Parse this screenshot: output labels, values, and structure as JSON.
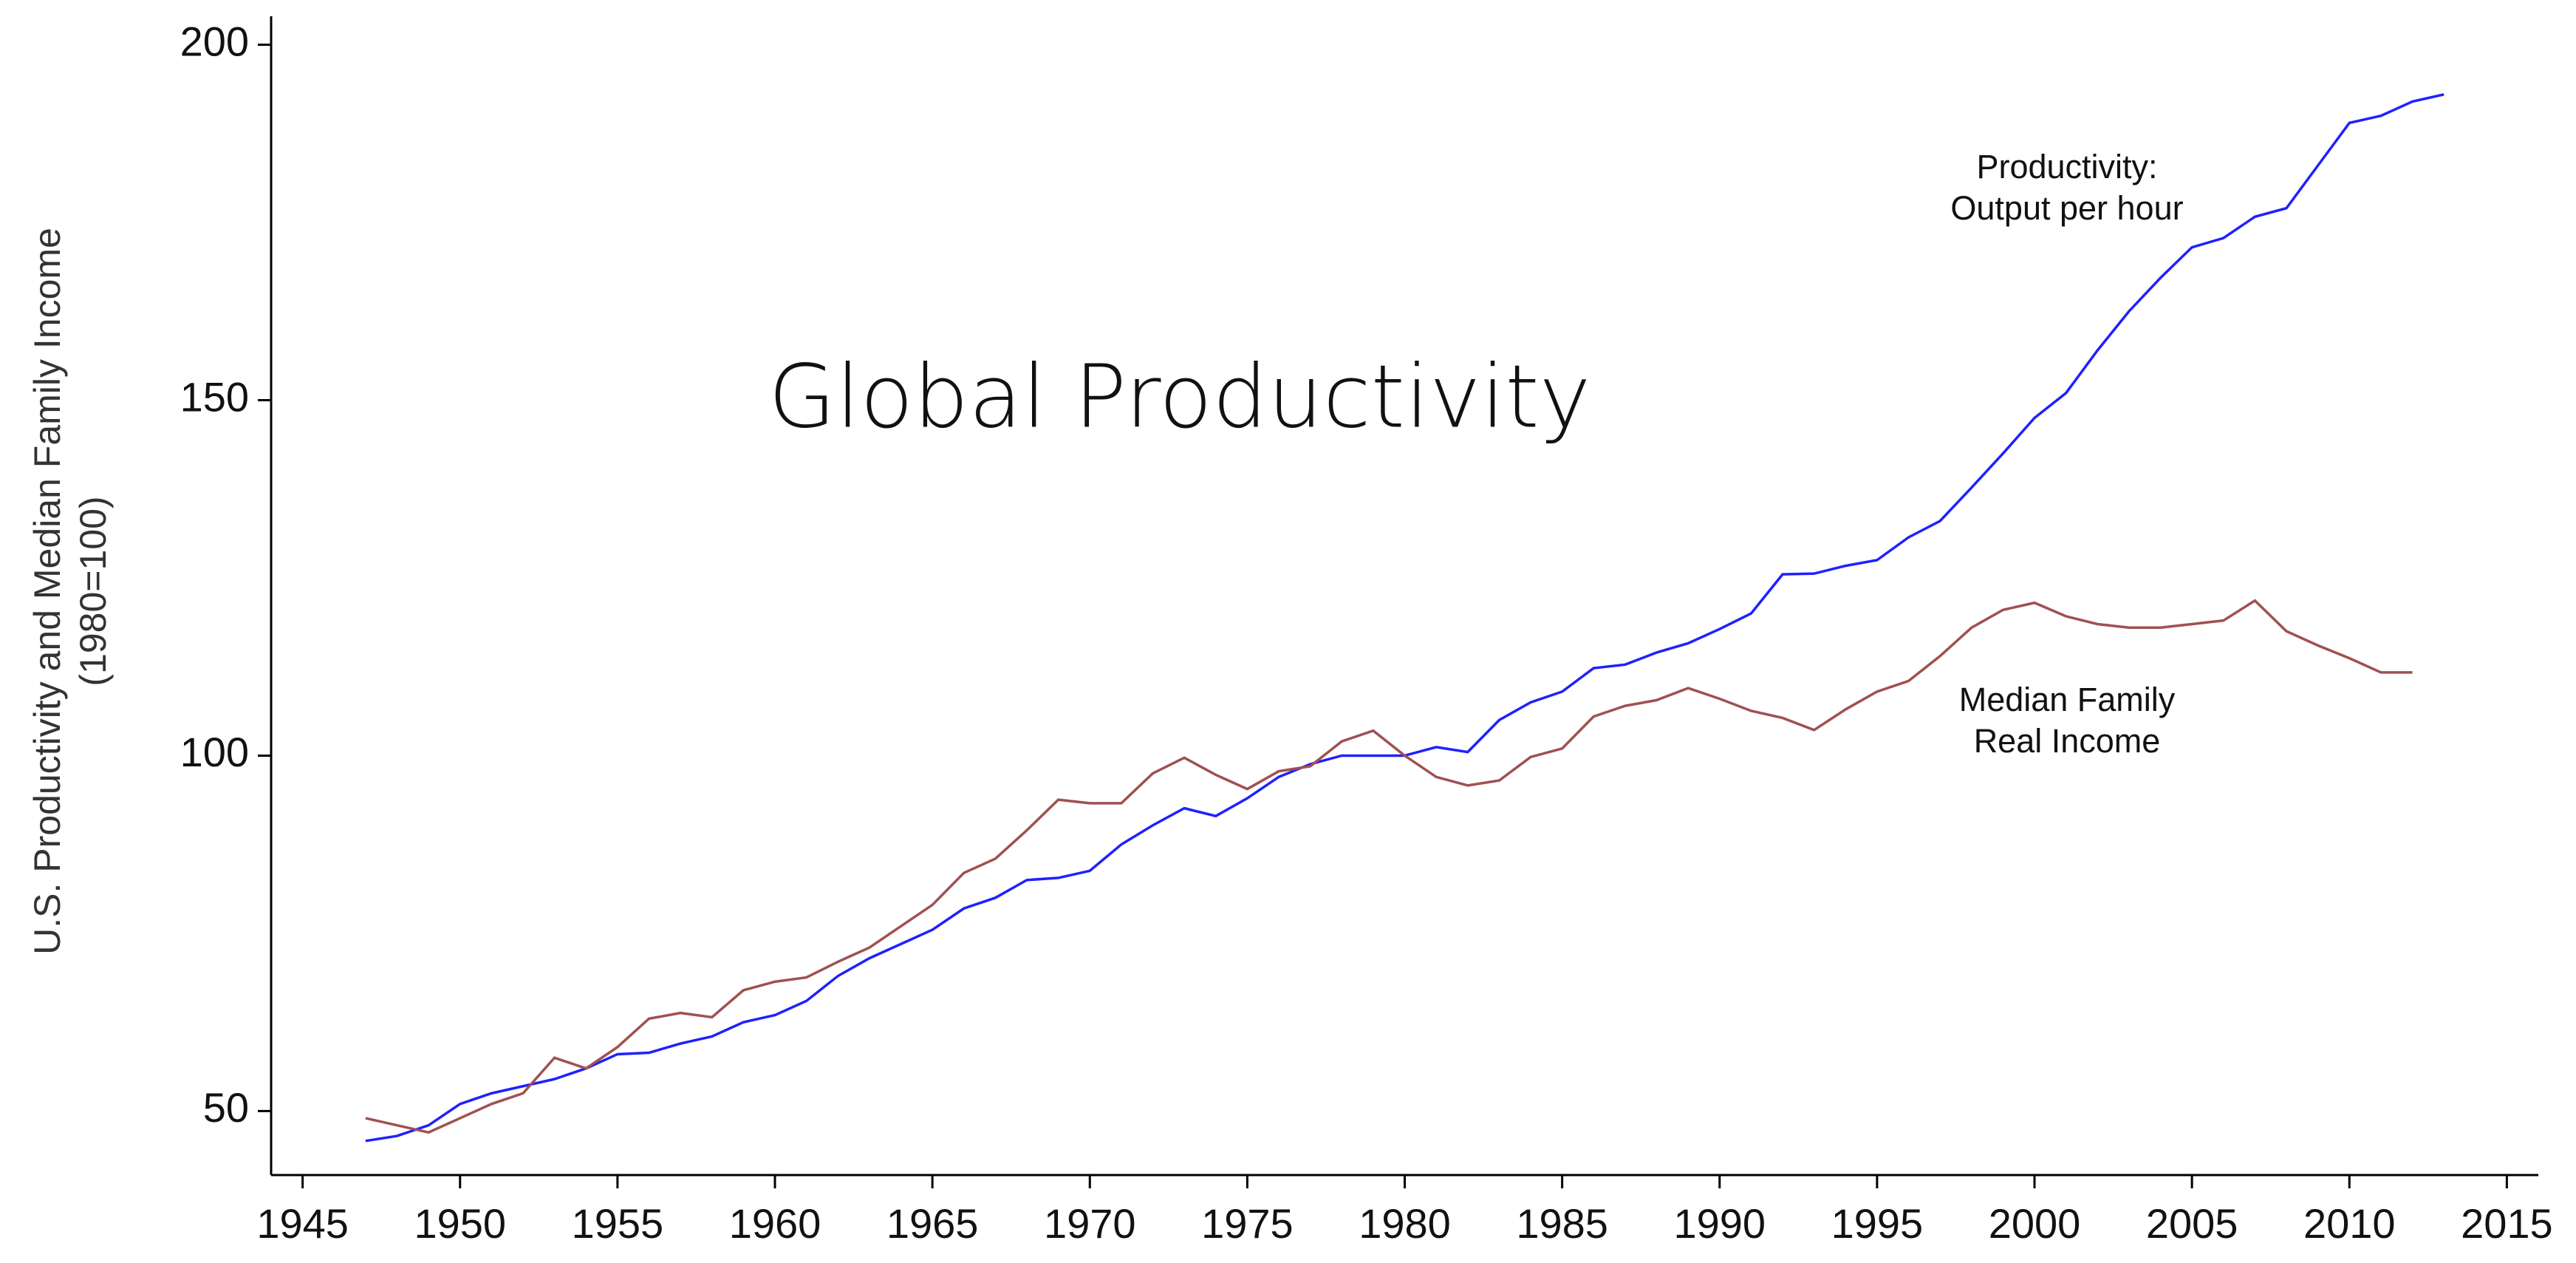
{
  "chart_data": {
    "type": "line",
    "title": "Global Productivity",
    "y_label": [
      "U.S. Productivity and Median Family Income",
      "(1980=100)"
    ],
    "x": [
      1947,
      1948,
      1949,
      1950,
      1951,
      1952,
      1953,
      1954,
      1955,
      1956,
      1957,
      1958,
      1959,
      1960,
      1961,
      1962,
      1963,
      1964,
      1965,
      1966,
      1967,
      1968,
      1969,
      1970,
      1971,
      1972,
      1973,
      1974,
      1975,
      1976,
      1977,
      1978,
      1979,
      1980,
      1981,
      1982,
      1983,
      1984,
      1985,
      1986,
      1987,
      1988,
      1989,
      1990,
      1991,
      1992,
      1993,
      1994,
      1995,
      1996,
      1997,
      1998,
      1999,
      2000,
      2001,
      2002,
      2003,
      2004,
      2005,
      2006,
      2007,
      2008,
      2009,
      2010,
      2011,
      2012,
      2013
    ],
    "series": [
      {
        "color": "#2020ff",
        "values": [
          45.8,
          46.5,
          48,
          51,
          52.5,
          53.5,
          54.5,
          56,
          58,
          58.2,
          59.5,
          60.5,
          62.5,
          63.5,
          65.5,
          69,
          71.5,
          73.5,
          75.5,
          78.5,
          80,
          82.5,
          82.8,
          83.8,
          87.5,
          90.2,
          92.6,
          91.5,
          94,
          97,
          98.8,
          100,
          100,
          100,
          101.2,
          100.5,
          105,
          107.5,
          109,
          112.3,
          112.8,
          114.5,
          115.8,
          117.8,
          120,
          125.5,
          125.6,
          126.7,
          127.5,
          130.7,
          133,
          137.7,
          142.5,
          147.5,
          151,
          157,
          162.5,
          167.2,
          171.5,
          172.8,
          175.8,
          177,
          183,
          189,
          190,
          192,
          193
        ]
      },
      {
        "color": "#a05050",
        "values": [
          49,
          48,
          47,
          49,
          51,
          52.5,
          57.5,
          56,
          59,
          63,
          63.8,
          63.2,
          67,
          68.2,
          68.8,
          71,
          73,
          76,
          79,
          83.5,
          85.5,
          89.5,
          93.8,
          93.3,
          93.3,
          97.5,
          99.7,
          97.3,
          95.3,
          97.8,
          98.5,
          102,
          103.5,
          100,
          97,
          95.8,
          96.5,
          99.8,
          101,
          105.5,
          107,
          107.8,
          109.5,
          108,
          106.3,
          105.3,
          103.6,
          106.5,
          109,
          110.5,
          114,
          118,
          120.5,
          121.5,
          119.6,
          118.5,
          118,
          118,
          118.5,
          119,
          121.8,
          117.5,
          115.5,
          113.7,
          111.7,
          111.7,
          null
        ]
      }
    ],
    "annotations": [
      {
        "lines": [
          "Productivity:",
          "Output per hour"
        ]
      },
      {
        "lines": [
          "Median Family",
          "Real Income"
        ]
      }
    ],
    "xlim": [
      1944,
      2016
    ],
    "ylim": [
      41,
      204
    ],
    "xticks": [
      1945,
      1950,
      1955,
      1960,
      1965,
      1970,
      1975,
      1980,
      1985,
      1990,
      1995,
      2000,
      2005,
      2010,
      2015
    ],
    "yticks": [
      50,
      100,
      150,
      200
    ]
  }
}
